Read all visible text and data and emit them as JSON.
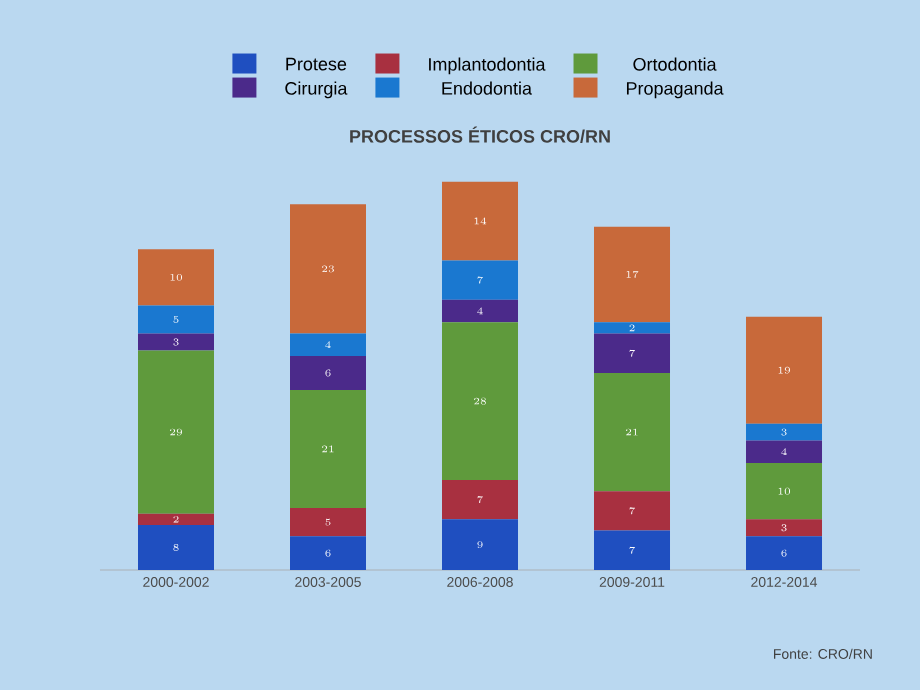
{
  "chart_data": {
    "type": "bar",
    "stacked": true,
    "title": "PROCESSOS ÉTICOS CRO/RN",
    "categories": [
      "2000-2002",
      "2003-2005",
      "2006-2008",
      "2009-2011",
      "2012-2014"
    ],
    "series": [
      {
        "name": "Protese",
        "color": "#1f4fc0",
        "values": [
          8,
          6,
          9,
          7,
          6
        ]
      },
      {
        "name": "Implantodontia",
        "color": "#a83040",
        "values": [
          2,
          5,
          7,
          7,
          3
        ]
      },
      {
        "name": "Ortodontia",
        "color": "#5f9a3c",
        "values": [
          29,
          21,
          28,
          21,
          10
        ]
      },
      {
        "name": "Cirurgia",
        "color": "#4b2a8a",
        "values": [
          3,
          6,
          4,
          7,
          4
        ]
      },
      {
        "name": "Endodontia",
        "color": "#1a78d0",
        "values": [
          5,
          4,
          7,
          2,
          3
        ]
      },
      {
        "name": "Propaganda",
        "color": "#c8693a",
        "values": [
          10,
          23,
          14,
          17,
          19
        ]
      }
    ],
    "data_labels": true,
    "legend": "top",
    "annotations": [
      "Fonte: CRO/RN"
    ]
  }
}
